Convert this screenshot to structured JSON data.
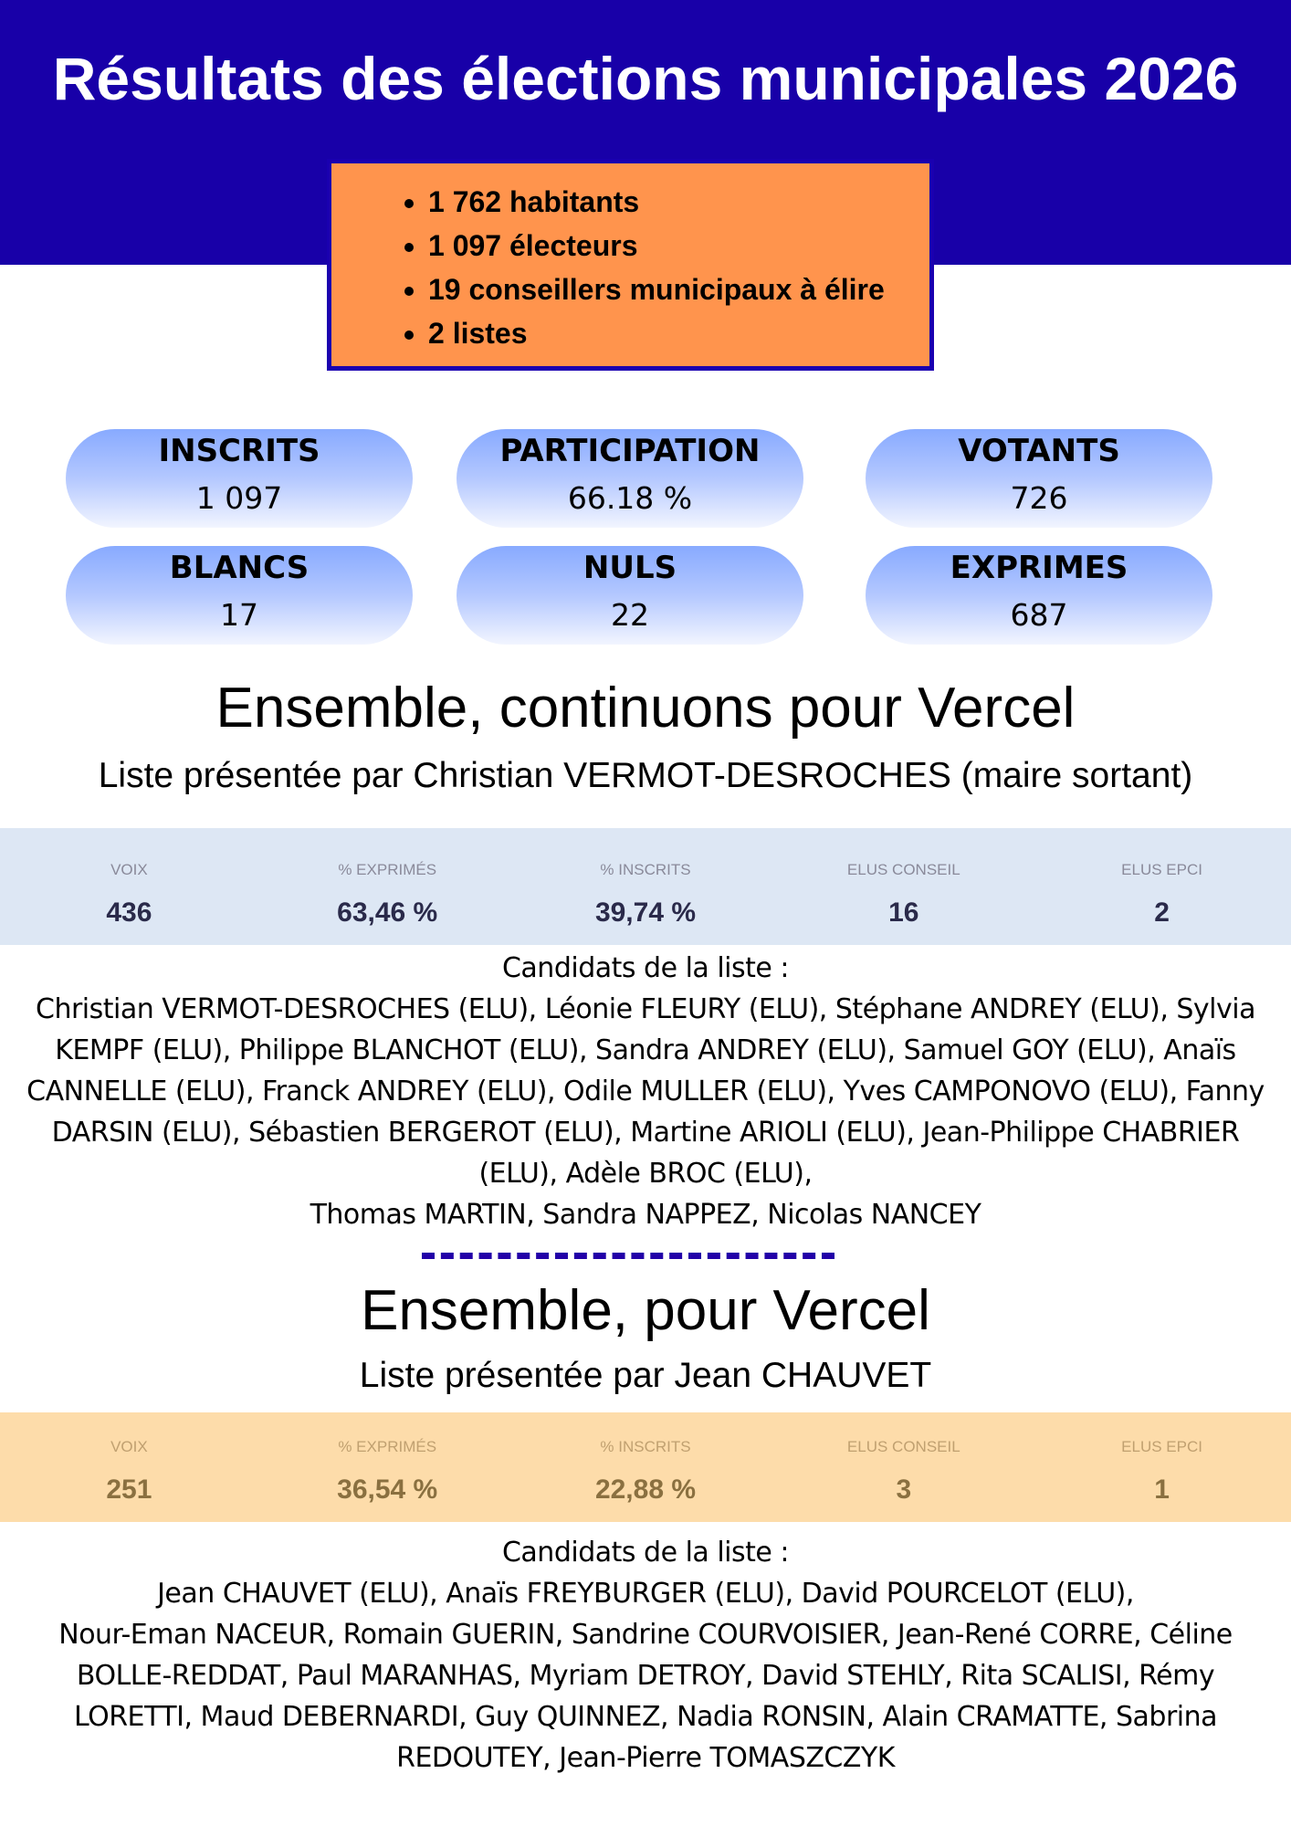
{
  "title": "Résultats des élections municipales 2026",
  "info": [
    "1 762 habitants",
    "1 097 électeurs",
    "19 conseillers municipaux à élire",
    "2 listes"
  ],
  "stats": [
    {
      "label": "INSCRITS",
      "value": "1 097"
    },
    {
      "label": "PARTICIPATION",
      "value": "66.18 %"
    },
    {
      "label": "VOTANTS",
      "value": "726"
    },
    {
      "label": "BLANCS",
      "value": "17"
    },
    {
      "label": "NULS",
      "value": "22"
    },
    {
      "label": "EXPRIMES",
      "value": "687"
    }
  ],
  "colors": {
    "header": "#1800a8",
    "info_box": "#ff944d",
    "list1_band": "#dde7f4",
    "list2_band": "#fddcaa"
  },
  "lists": [
    {
      "name": "Ensemble, continuons pour Vercel",
      "subtitle": "Liste présentée par Christian VERMOT-DESROCHES (maire sortant)",
      "results": [
        {
          "k": "VOIX",
          "v": "436"
        },
        {
          "k": "% EXPRIMÉS",
          "v": "63,46 %"
        },
        {
          "k": "% INSCRITS",
          "v": "39,74 %"
        },
        {
          "k": "ELUS CONSEIL",
          "v": "16"
        },
        {
          "k": "ELUS EPCI",
          "v": "2"
        }
      ],
      "cand_title": "Candidats de la liste :",
      "candidates": "Christian VERMOT-DESROCHES (ELU), Léonie FLEURY (ELU), Stéphane ANDREY (ELU), Sylvia KEMPF (ELU), Philippe BLANCHOT (ELU), Sandra ANDREY (ELU), Samuel GOY (ELU), Anaïs CANNELLE (ELU), Franck ANDREY (ELU), Odile MULLER (ELU), Yves CAMPONOVO (ELU), Fanny DARSIN (ELU), Sébastien BERGEROT (ELU), Martine ARIOLI (ELU), Jean-Philippe CHABRIER (ELU), Adèle BROC (ELU),",
      "candidates2": "Thomas MARTIN, Sandra NAPPEZ, Nicolas NANCEY"
    },
    {
      "name": "Ensemble, pour Vercel",
      "subtitle": "Liste présentée par Jean CHAUVET",
      "results": [
        {
          "k": "VOIX",
          "v": "251"
        },
        {
          "k": "% EXPRIMÉS",
          "v": "36,54 %"
        },
        {
          "k": "% INSCRITS",
          "v": "22,88 %"
        },
        {
          "k": "ELUS CONSEIL",
          "v": "3"
        },
        {
          "k": "ELUS EPCI",
          "v": "1"
        }
      ],
      "cand_title": "Candidats de la liste :",
      "candidates": "Jean CHAUVET (ELU), Anaïs FREYBURGER (ELU), David POURCELOT (ELU),",
      "candidates2": "Nour-Eman NACEUR, Romain GUERIN, Sandrine COURVOISIER, Jean-René CORRE, Céline BOLLE-REDDAT, Paul MARANHAS, Myriam DETROY, David STEHLY, Rita SCALISI, Rémy LORETTI, Maud DEBERNARDI, Guy QUINNEZ, Nadia RONSIN, Alain CRAMATTE, Sabrina REDOUTEY, Jean-Pierre TOMASZCZYK"
    }
  ]
}
